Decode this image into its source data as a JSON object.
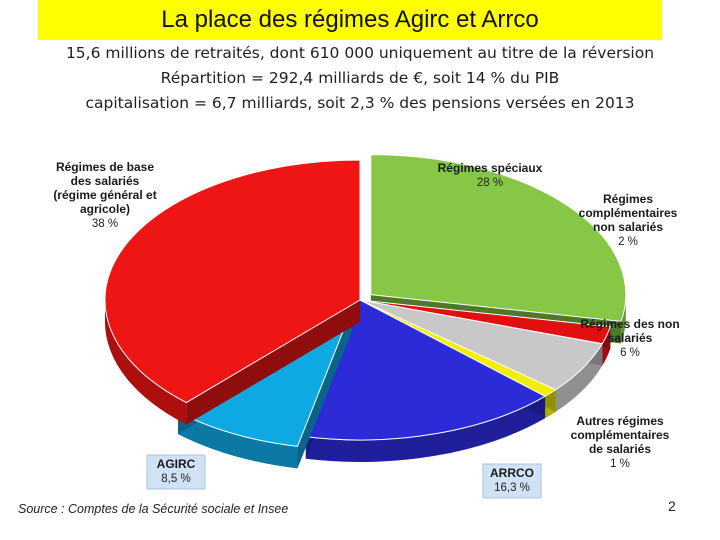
{
  "slide": {
    "title": "La place des régimes Agirc et Arrco",
    "subtitle_lines": [
      "15,6 millions de  retraités, dont 610 000 uniquement au titre de la réversion",
      "Répartition = 292,4 milliards de €, soit 14 % du PIB",
      "capitalisation = 6,7 milliards, soit 2,3 % des pensions versées en 2013"
    ],
    "source": "Source : Comptes de la Sécurité sociale et Insee",
    "page_number": "2"
  },
  "chart_data": {
    "type": "pie",
    "title": "",
    "slices": [
      {
        "label": [
          "Régimes spéciaux"
        ],
        "value_label": "28 %",
        "value": 28,
        "color": "#86c846"
      },
      {
        "label": [
          "Régimes",
          "complémentaires",
          "non salariés"
        ],
        "value_label": "2 %",
        "value": 2,
        "color": "#e01010"
      },
      {
        "label": [
          "Régimes des non",
          "salariés"
        ],
        "value_label": "6 %",
        "value": 6,
        "color": "#c8c8c8"
      },
      {
        "label": [
          "Autres régimes",
          "complémentaires",
          "de salariés"
        ],
        "value_label": "1 %",
        "value": 1,
        "color": "#f2f000"
      },
      {
        "label": [
          "ARRCO"
        ],
        "value_label": "16,3 %",
        "value": 16.3,
        "color": "#2b2bd8"
      },
      {
        "label": [
          "AGIRC"
        ],
        "value_label": "8,5 %",
        "value": 8.5,
        "color": "#0ea8e2"
      },
      {
        "label": [
          "Régimes de base",
          "des salariés",
          "(régime général et",
          "agricole)"
        ],
        "value_label": "38 %",
        "value": 38,
        "color": "#f01515"
      }
    ]
  }
}
